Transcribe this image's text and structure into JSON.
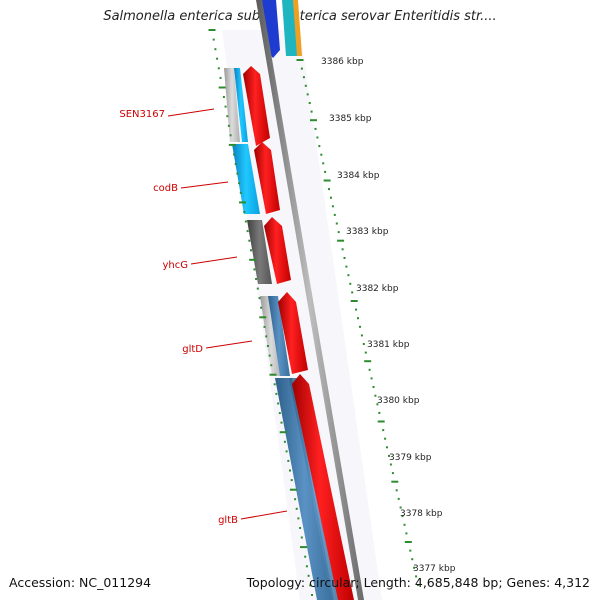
{
  "title": "Salmonella enterica subsp. enterica serovar Enteritidis str....",
  "footer": {
    "accession": "Accession: NC_011294",
    "info": "Topology: circular; Length: 4,685,848 bp; Genes: 4,312"
  },
  "genes": [
    {
      "label": "SEN3167",
      "color": "#ff0000"
    },
    {
      "label": "codB",
      "color": "#ff0000"
    },
    {
      "label": "yhcG",
      "color": "#ff0000"
    },
    {
      "label": "gltD",
      "color": "#ff0000"
    },
    {
      "label": "gltB",
      "color": "#ff0000"
    }
  ],
  "ticks": [
    {
      "label": "3386 kbp"
    },
    {
      "label": "3385 kbp"
    },
    {
      "label": "3384 kbp"
    },
    {
      "label": "3383 kbp"
    },
    {
      "label": "3382 kbp"
    },
    {
      "label": "3381 kbp"
    },
    {
      "label": "3380 kbp"
    },
    {
      "label": "3379 kbp"
    },
    {
      "label": "3378 kbp"
    },
    {
      "label": "3377 kbp"
    }
  ],
  "colors": {
    "forward_strand": "#ff0000",
    "blast_blue": "#00bfff",
    "blast_steel": "#4682b4",
    "blast_gray": "#666666",
    "blast_light": "#c0c0c0",
    "backbone": "#888888",
    "tick_green": "#2e8b2e",
    "label_red": "#cc0000"
  }
}
